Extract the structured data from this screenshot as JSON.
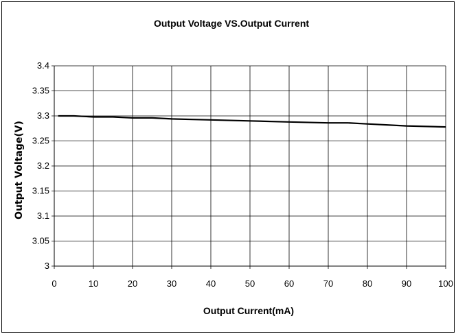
{
  "chart_data": {
    "type": "line",
    "title": "Output Voltage VS.Output Current",
    "xlabel": "Output Current(mA)",
    "ylabel": "Output Voltage(V)",
    "xlim": [
      0,
      100
    ],
    "ylim": [
      3,
      3.4
    ],
    "xticks": [
      "0",
      "10",
      "20",
      "30",
      "40",
      "50",
      "60",
      "70",
      "80",
      "90",
      "100"
    ],
    "yticks": [
      "3",
      "3.05",
      "3.1",
      "3.15",
      "3.2",
      "3.25",
      "3.3",
      "3.35",
      "3.4"
    ],
    "grid": true,
    "series": [
      {
        "x": [
          1,
          5,
          10,
          15,
          20,
          25,
          30,
          40,
          50,
          60,
          70,
          75,
          80,
          90,
          100
        ],
        "y": [
          3.3,
          3.3,
          3.298,
          3.298,
          3.296,
          3.296,
          3.294,
          3.292,
          3.29,
          3.288,
          3.286,
          3.286,
          3.284,
          3.28,
          3.278
        ],
        "color": "#000000"
      }
    ]
  }
}
